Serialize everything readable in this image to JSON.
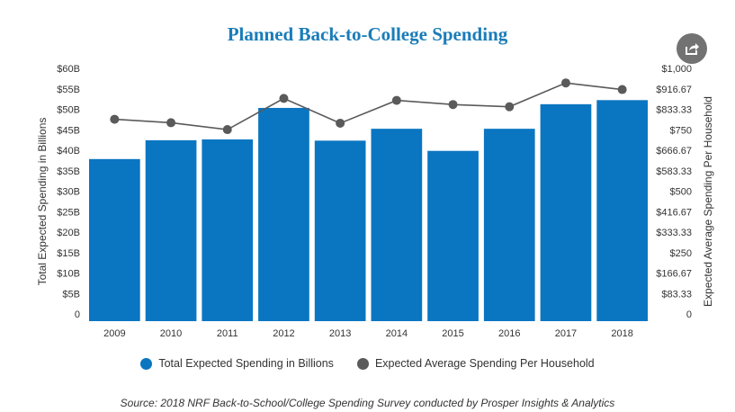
{
  "chart_data": {
    "type": "bar",
    "title": "Planned Back-to-College Spending",
    "categories": [
      "2009",
      "2010",
      "2011",
      "2012",
      "2013",
      "2014",
      "2015",
      "2016",
      "2017",
      "2018"
    ],
    "series": [
      {
        "name": "Total Expected Spending in Billions",
        "type": "bar",
        "axis": "left",
        "color": "#0a76c2",
        "values": [
          39.6,
          44.2,
          44.4,
          52.1,
          44.1,
          47.0,
          41.6,
          47.0,
          53.0,
          54.0
        ]
      },
      {
        "name": "Expected Average Spending Per Household",
        "type": "line",
        "axis": "right",
        "color": "#5a5a5a",
        "values": [
          822,
          808,
          780,
          907,
          806,
          899,
          882,
          873,
          970,
          943
        ]
      }
    ],
    "ylabel": "Total Expected Spending in Billions",
    "y2label": "Expected Average Spending Per Household",
    "ylim": [
      0,
      60
    ],
    "y2lim": [
      0,
      1000
    ],
    "yticks": [
      "0",
      "$5B",
      "$10B",
      "$15B",
      "$20B",
      "$25B",
      "$30B",
      "$35B",
      "$40B",
      "$45B",
      "$50B",
      "$55B",
      "$60B"
    ],
    "y2ticks": [
      "0",
      "$83.33",
      "$166.67",
      "$250",
      "$333.33",
      "$416.67",
      "$500",
      "$583.33",
      "$666.67",
      "$750",
      "$833.33",
      "$916.67",
      "$1,000"
    ],
    "grid": false,
    "legend_position": "bottom"
  },
  "source": "Source: 2018 NRF Back-to-School/College Spending Survey conducted by Prosper Insights & Analytics",
  "share_icon": "share-icon"
}
